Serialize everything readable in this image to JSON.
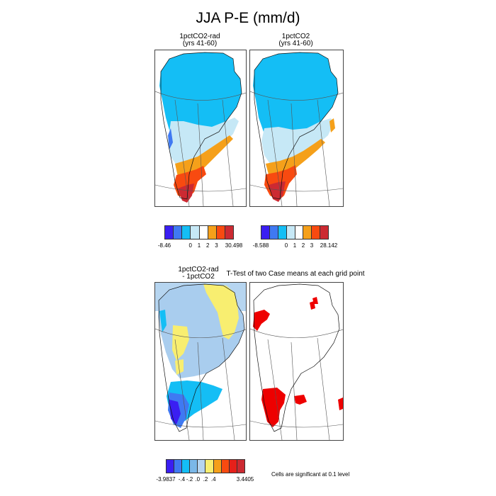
{
  "title": "JJA P-E (mm/d)",
  "panels": {
    "p1": {
      "title": "1pctCO2-rad\n(yrs 41-60)"
    },
    "p2": {
      "title": "1pctCO2\n(yrs 41-60)"
    },
    "p3": {
      "title": "1pctCO2-rad\n- 1pctCO2"
    },
    "p4": {
      "title": "T-Test of two Case means at each grid point"
    }
  },
  "colorbars": {
    "cb1": {
      "colors": [
        "#3a1ef2",
        "#3f79f2",
        "#14bef5",
        "#c6e8f6",
        "#ffffff",
        "#f5a01a",
        "#f84a10",
        "#cc2a32"
      ],
      "labels": [
        "-8.46",
        "0",
        "1",
        "2",
        "3",
        "30.498"
      ]
    },
    "cb2": {
      "colors": [
        "#3a1ef2",
        "#3f79f2",
        "#14bef5",
        "#c6e8f6",
        "#ffffff",
        "#f5a01a",
        "#f84a10",
        "#cc2a32"
      ],
      "labels": [
        "-8.588",
        "0",
        "1",
        "2",
        "3",
        "28.142"
      ]
    },
    "cb3": {
      "colors": [
        "#3a1ef2",
        "#3f79f2",
        "#14bef5",
        "#7bb8e8",
        "#b6d5f0",
        "#f8ee70",
        "#f5a01a",
        "#f84a10",
        "#e6201a",
        "#cc2a32"
      ],
      "labels": [
        "-3.9837",
        "-.4",
        "-.2",
        ".0",
        ".2",
        ".4",
        "3.4405"
      ]
    }
  },
  "significance_note": "Cells are significant at 0.1 level",
  "legend_colors": {
    "deep_blue": "#3a1ef2",
    "blue": "#3f79f2",
    "cyan": "#14bef5",
    "light_blue": "#c6e8f6",
    "mid_blue": "#a9cdee",
    "yellow": "#f8ee70",
    "orange": "#f5a01a",
    "red_orange": "#f84a10",
    "red": "#cc2a32",
    "sig_red": "#ee0000"
  }
}
